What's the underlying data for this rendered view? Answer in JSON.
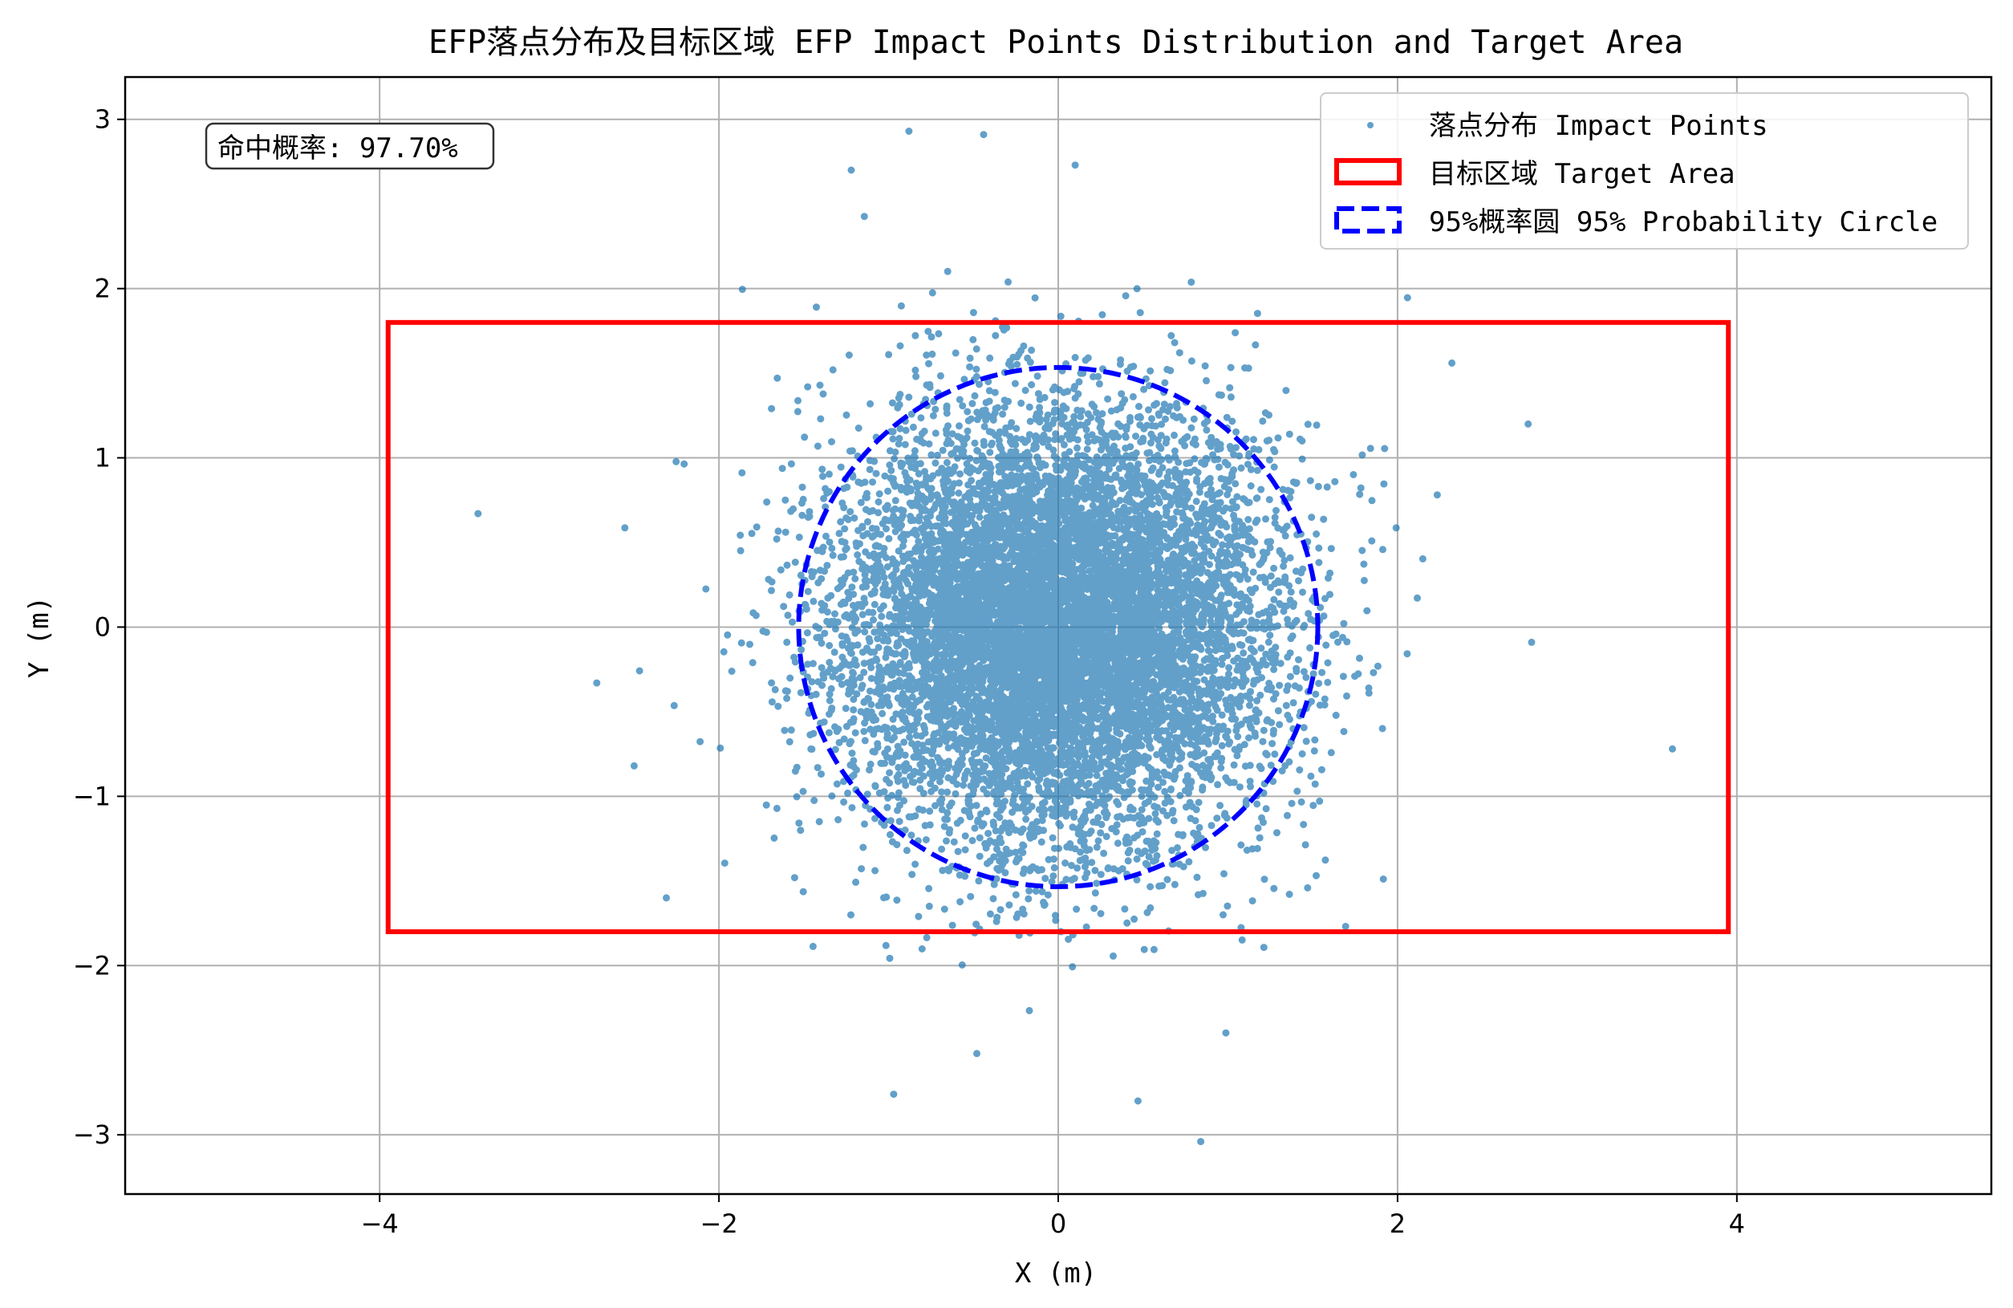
{
  "chart_data": {
    "type": "scatter",
    "title": "EFP落点分布及目标区域 EFP Impact Points Distribution and Target Area",
    "xlabel": "X (m)",
    "ylabel": "Y (m)",
    "xlim": [
      -5.5,
      5.5
    ],
    "ylim": [
      -3.35,
      3.25
    ],
    "xticks": [
      -4,
      -2,
      0,
      2,
      4
    ],
    "yticks": [
      -3,
      -2,
      -1,
      0,
      1,
      2,
      3
    ],
    "xtick_labels": [
      "−4",
      "−2",
      "0",
      "2",
      "4"
    ],
    "ytick_labels": [
      "−3",
      "−2",
      "−1",
      "0",
      "1",
      "2",
      "3"
    ],
    "grid": true,
    "legend_position": "top-right",
    "annotation": "命中概率: 97.70%",
    "series": [
      {
        "name": "落点分布 Impact Points",
        "kind": "scatter",
        "color": "#1f77b4",
        "distribution": "bivariate normal",
        "mean": [
          0,
          0
        ],
        "std": [
          0.63,
          0.63
        ],
        "n_points": 10000,
        "visible_outliers": [
          [
            -3.42,
            0.67
          ],
          [
            3.62,
            -0.72
          ],
          [
            2.77,
            1.2
          ],
          [
            -2.72,
            -0.33
          ],
          [
            2.79,
            -0.09
          ],
          [
            0.84,
            -3.04
          ],
          [
            -0.88,
            2.93
          ],
          [
            -0.44,
            2.91
          ],
          [
            -0.97,
            -2.76
          ],
          [
            0.47,
            -2.8
          ],
          [
            -2.5,
            -0.82
          ],
          [
            2.32,
            1.56
          ],
          [
            -2.31,
            -1.6
          ],
          [
            -0.48,
            -2.52
          ],
          [
            -1.22,
            2.7
          ],
          [
            0.1,
            2.73
          ]
        ]
      },
      {
        "name": "目标区域 Target Area",
        "kind": "rectangle",
        "color": "#ff0000",
        "x_range": [
          -3.95,
          3.95
        ],
        "y_range": [
          -1.8,
          1.8
        ]
      },
      {
        "name": "95%概率圆 95% Probability Circle",
        "kind": "circle",
        "color": "#0000ff",
        "center": [
          0,
          0
        ],
        "radius": 1.53
      }
    ]
  }
}
